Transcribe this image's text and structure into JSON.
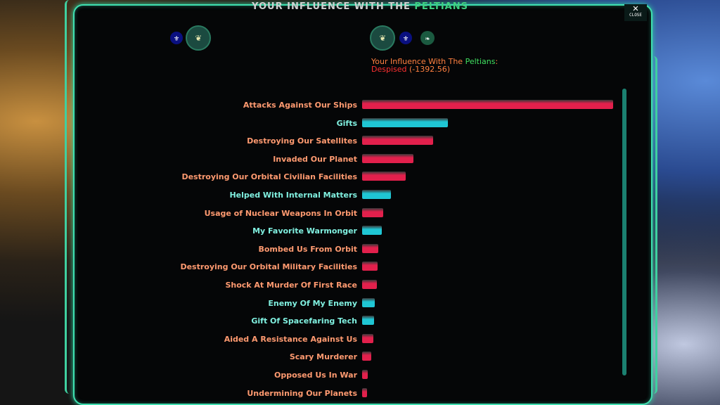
{
  "header": {
    "title_prefix": "Your Influence With The",
    "title_race": "Peltians",
    "close_label": "CLOSE",
    "close_icon": "x-icon"
  },
  "status": {
    "prefix": "Your Influence With The",
    "race": "Peltians",
    "suffix": ":",
    "level": "Despised",
    "score": "(-1392.56)"
  },
  "colors": {
    "negative": "#e2204c",
    "positive": "#1fc6d4",
    "accent": "#3fe0b0"
  },
  "chart_data": {
    "type": "bar",
    "orientation": "horizontal",
    "note_values": "relative magnitude, unlabeled",
    "categories": [
      "Attacks Against Our Ships",
      "Gifts",
      "Destroying Our Satellites",
      "Invaded Our Planet",
      "Destroying Our Orbital Civilian Facilities",
      "Helped With Internal Matters",
      "Usage of Nuclear Weapons In Orbit",
      "My Favorite Warmonger",
      "Bombed Us From Orbit",
      "Destroying Our Orbital Military Facilities",
      "Shock At Murder Of First Race",
      "Enemy Of My Enemy",
      "Gift Of Spacefaring Tech",
      "Aided A Resistance Against Us",
      "Scary Murderer",
      "Opposed Us In War",
      "Undermining Our Planets"
    ],
    "values": [
      357,
      122,
      101,
      73,
      62,
      41,
      30,
      28,
      23,
      22,
      21,
      18,
      17,
      16,
      13,
      8,
      7
    ],
    "sign": [
      "negative",
      "positive",
      "negative",
      "negative",
      "negative",
      "positive",
      "negative",
      "positive",
      "negative",
      "negative",
      "negative",
      "positive",
      "positive",
      "negative",
      "negative",
      "negative",
      "negative"
    ]
  }
}
